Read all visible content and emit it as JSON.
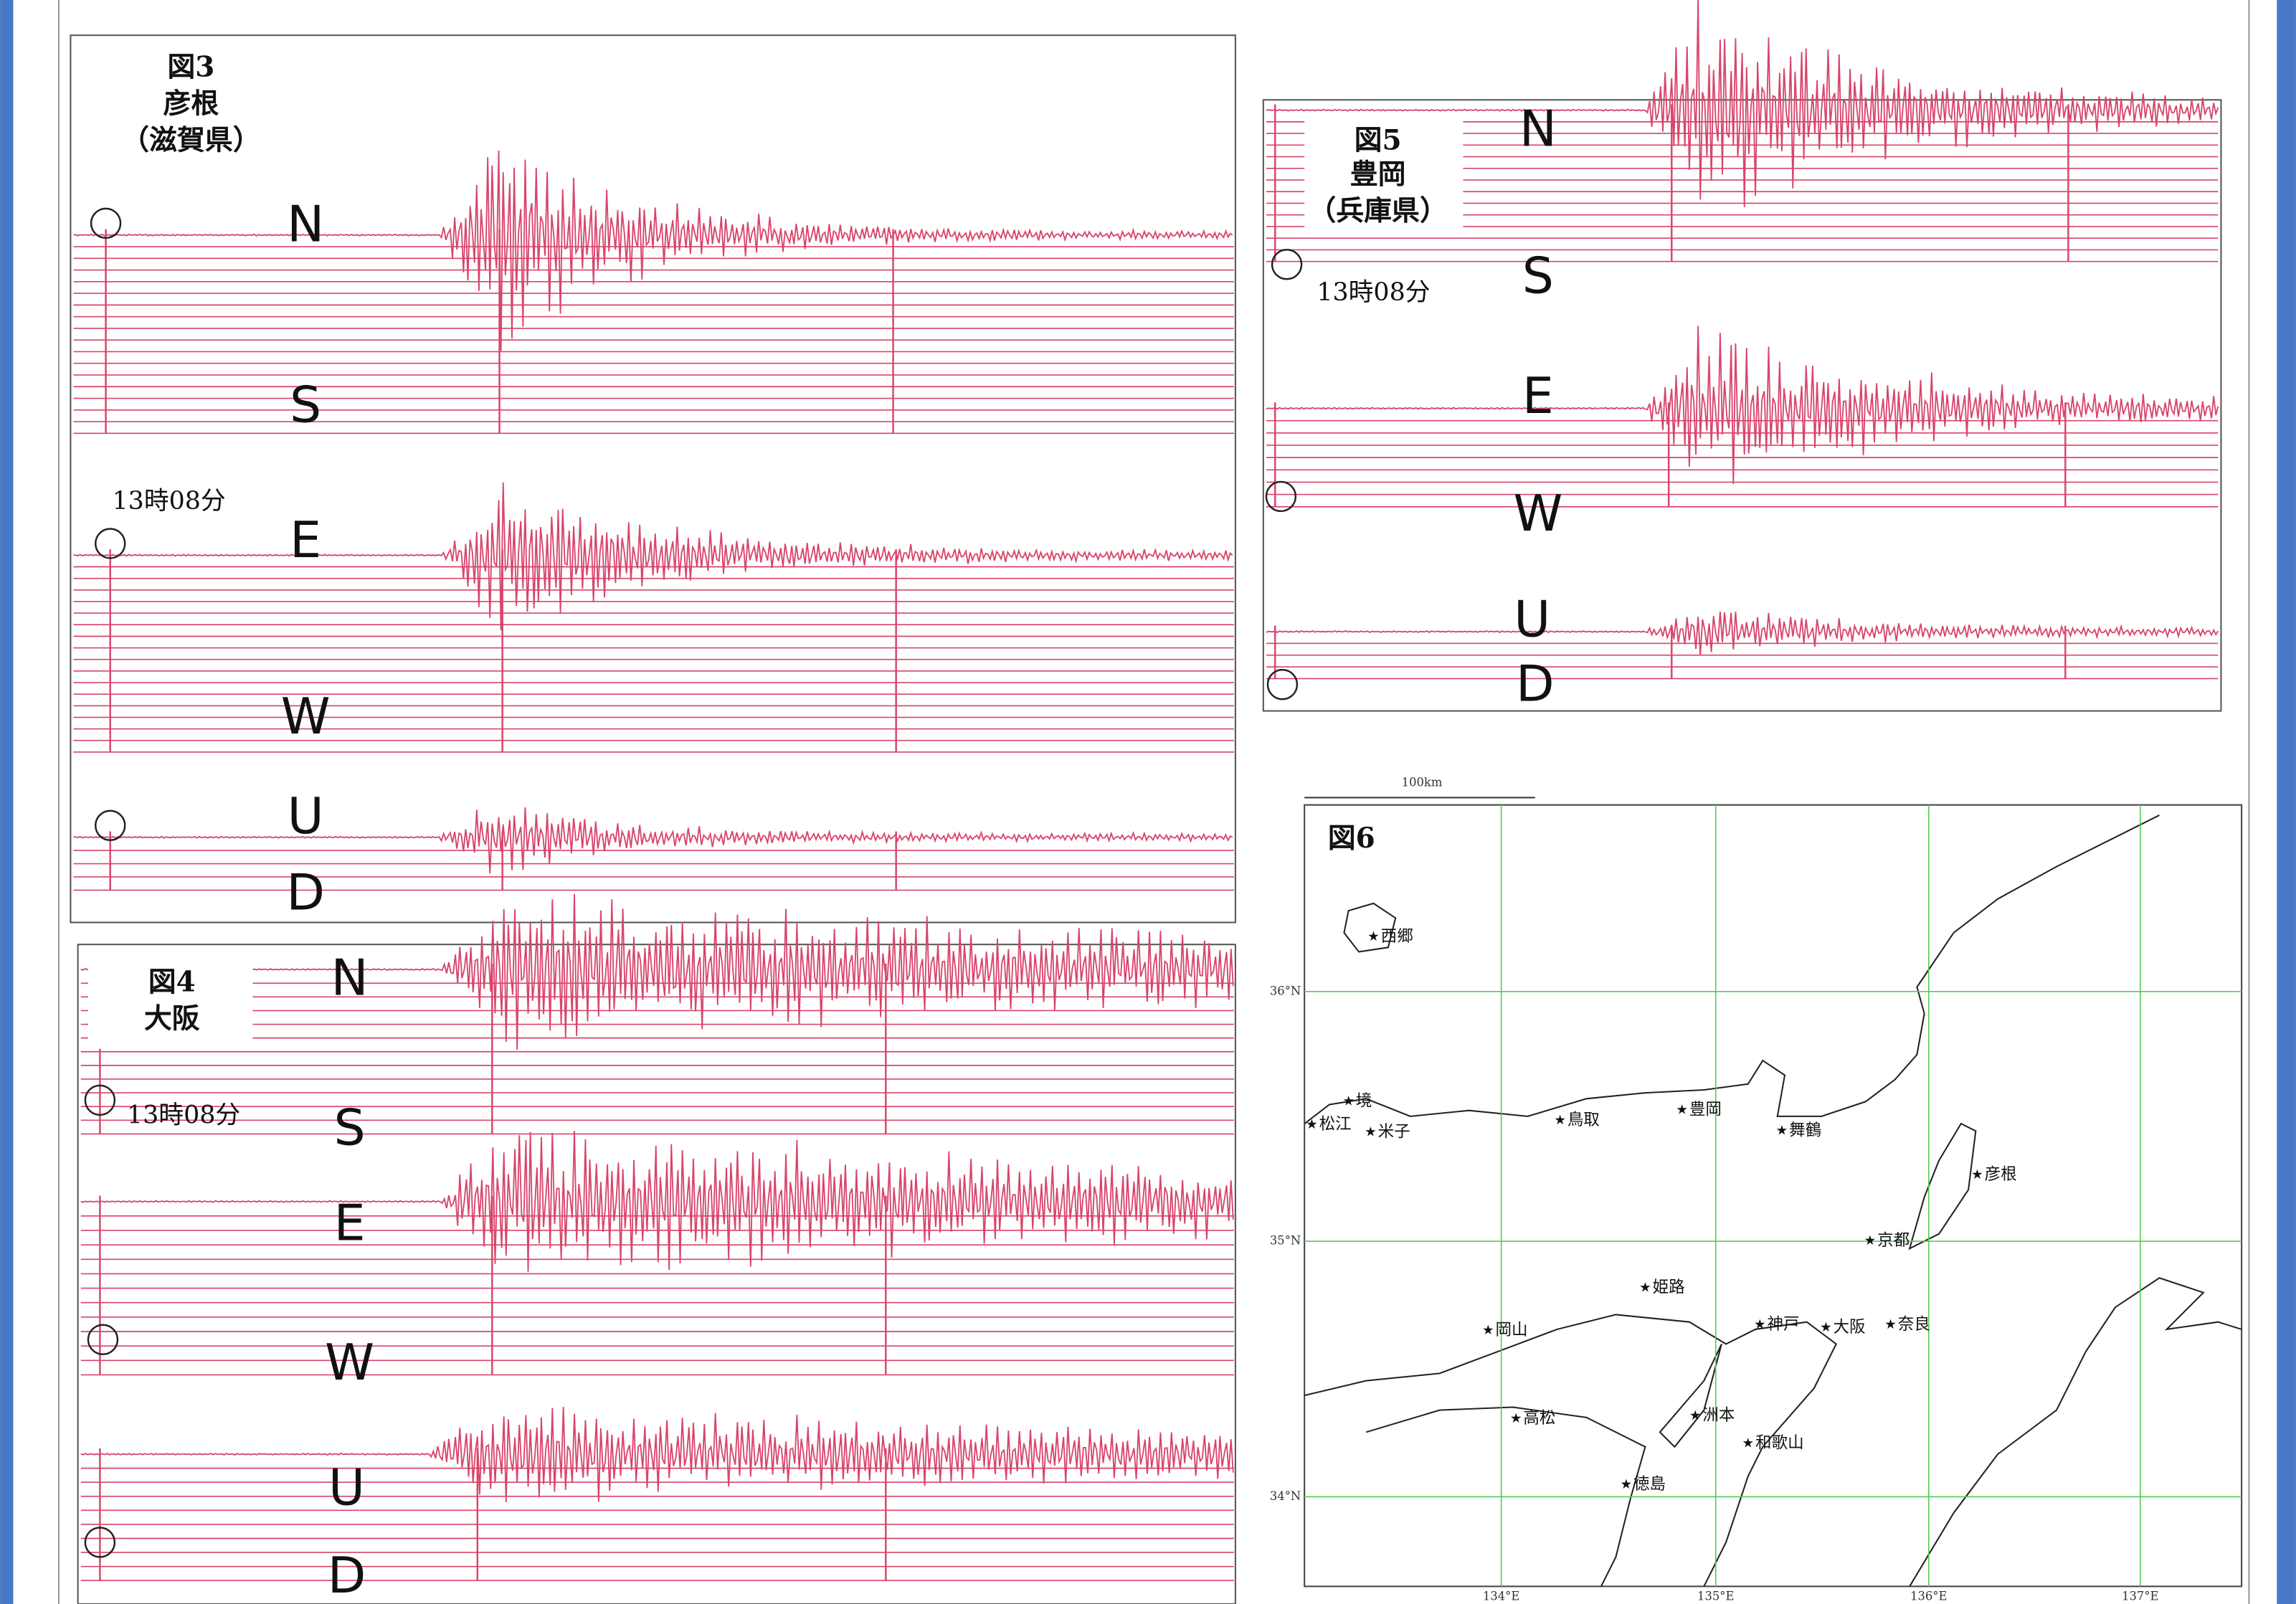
{
  "figures": [
    {
      "label": "図3",
      "station": "彦根",
      "prefecture": "（滋賀県）",
      "time": "13時08分",
      "components": [
        "N",
        "S",
        "E",
        "W",
        "U",
        "D"
      ]
    },
    {
      "label": "図4",
      "station": "大阪",
      "time": "13時08分",
      "components": [
        "N",
        "S",
        "E",
        "W",
        "U",
        "D"
      ]
    },
    {
      "label": "図5",
      "station": "豊岡",
      "prefecture": "（兵庫県）",
      "time": "13時08分",
      "components": [
        "N",
        "S",
        "E",
        "W",
        "U",
        "D"
      ]
    }
  ],
  "map": {
    "label": "図6",
    "scale": "100km",
    "lat_labels": [
      "36°N",
      "35°N",
      "34°N"
    ],
    "lon_labels": [
      "134°E",
      "135°E",
      "136°E",
      "137°E"
    ],
    "cities": [
      "西郷",
      "境",
      "松江",
      "米子",
      "鳥取",
      "豊岡",
      "舞鶴",
      "彦根",
      "京都",
      "姫路",
      "岡山",
      "神戸",
      "大阪",
      "奈良",
      "高松",
      "洲本",
      "和歌山",
      "徳島"
    ]
  }
}
